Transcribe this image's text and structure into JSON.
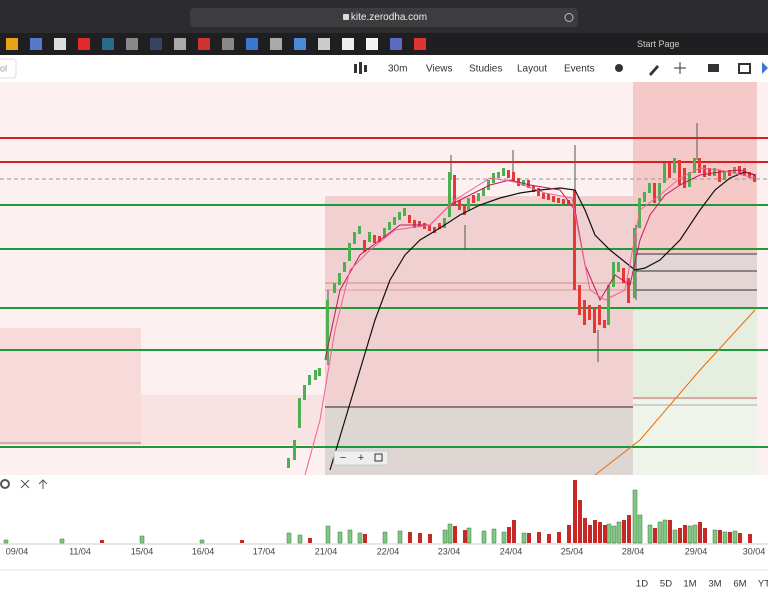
{
  "browser": {
    "url": "kite.zerodha.com",
    "start_page": "Start Page"
  },
  "toolbar": {
    "search": "ol",
    "interval": "30m",
    "menus": [
      "Views",
      "Studies",
      "Layout",
      "Events"
    ]
  },
  "chart": {
    "dates": [
      "09/04",
      "11/04",
      "15/04",
      "16/04",
      "17/04",
      "21/04",
      "22/04",
      "23/04",
      "24/04",
      "25/04",
      "28/04",
      "29/04",
      "30/04"
    ]
  },
  "footer": {
    "ranges": [
      "1D",
      "5D",
      "1M",
      "3M",
      "6M",
      "YT"
    ]
  }
}
